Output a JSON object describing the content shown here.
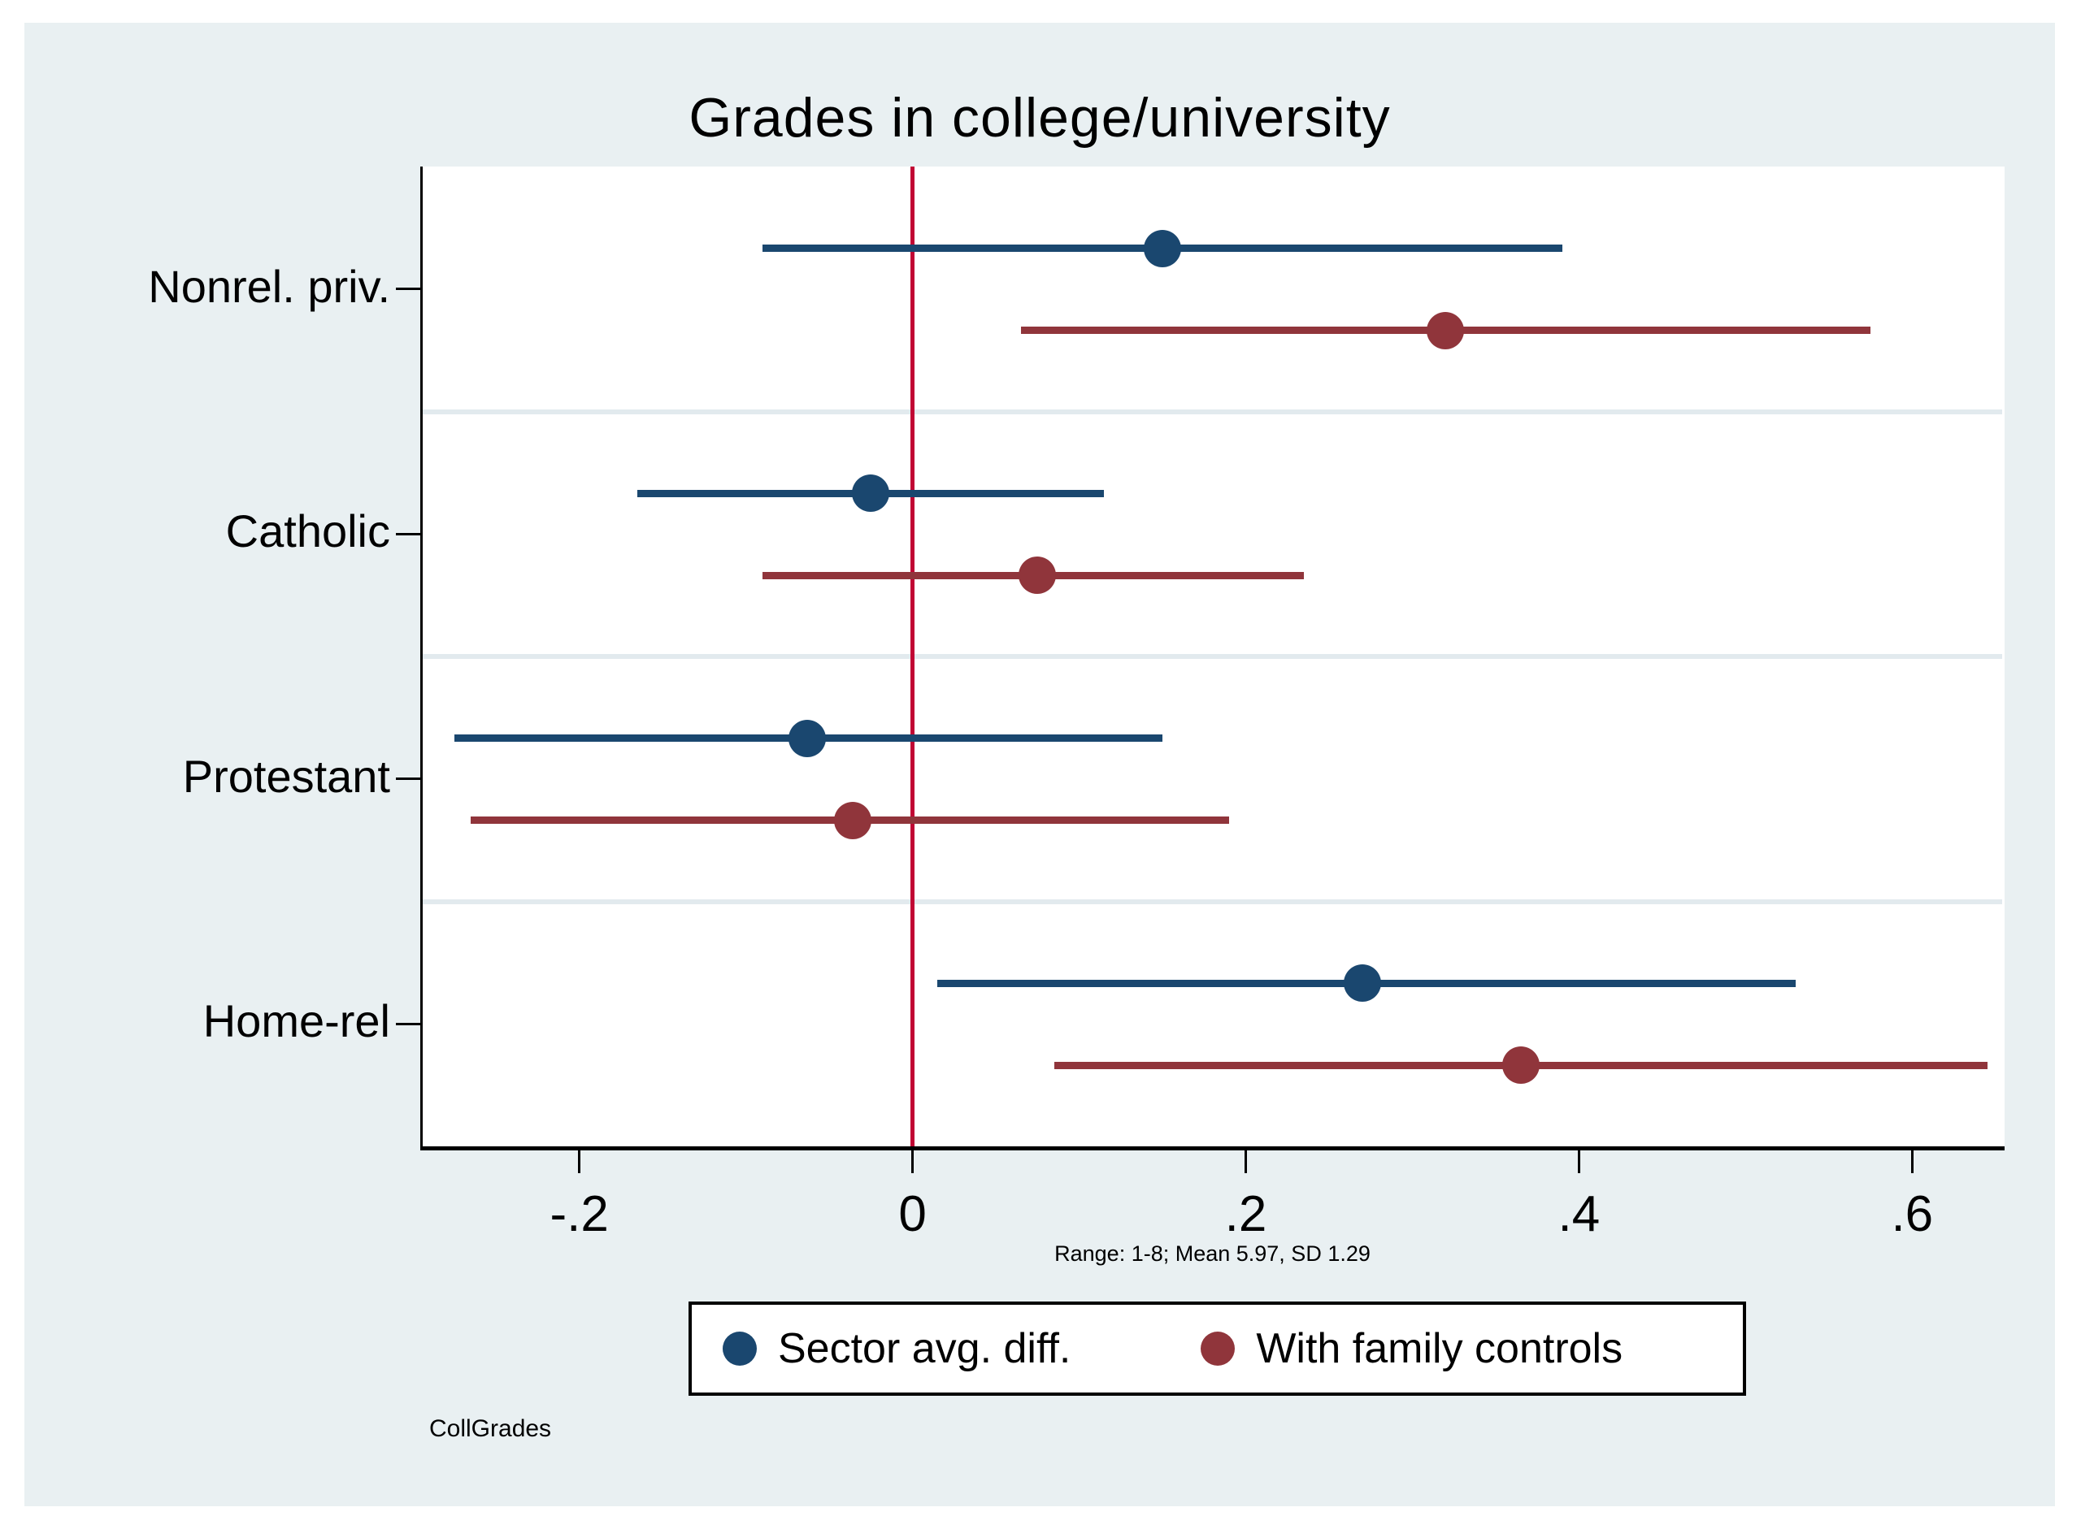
{
  "chart_data": {
    "type": "scatter",
    "subtype": "coefficient-dot-plot-with-ci",
    "title": "Grades in college/university",
    "categories": [
      "Nonrel. priv.",
      "Catholic",
      "Protestant",
      "Home-rel"
    ],
    "series": [
      {
        "name": "Sector avg. diff.",
        "color": "#1a476f",
        "estimates": [
          0.15,
          -0.025,
          -0.063,
          0.27
        ],
        "ci_low": [
          -0.09,
          -0.165,
          -0.275,
          0.015
        ],
        "ci_high": [
          0.39,
          0.115,
          0.15,
          0.53
        ]
      },
      {
        "name": "With family controls",
        "color": "#90353b",
        "estimates": [
          0.32,
          0.075,
          -0.036,
          0.365
        ],
        "ci_low": [
          0.065,
          -0.09,
          -0.265,
          0.085
        ],
        "ci_high": [
          0.575,
          0.235,
          0.19,
          0.645
        ]
      }
    ],
    "x_ticks": [
      "-.2",
      "0",
      ".2",
      ".4",
      ".6"
    ],
    "x_tick_values": [
      -0.2,
      0,
      0.2,
      0.4,
      0.6
    ],
    "xlim": [
      -0.294,
      0.654
    ],
    "zero_line_value": 0,
    "grid": "horizontal-category-separators",
    "legend_position": "bottom-center",
    "note": "Range: 1-8; Mean 5.97, SD 1.29",
    "watermark": "CollGrades"
  },
  "colors": {
    "navy_series": "#1a476f",
    "maroon_series": "#90353b",
    "zero_line": "#c10534",
    "panel_background": "#e9f0f2",
    "plot_background": "#ffffff",
    "gridline": "#e2eaee",
    "axis": "#000000"
  }
}
